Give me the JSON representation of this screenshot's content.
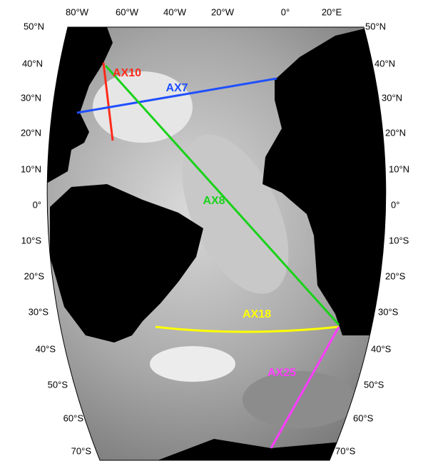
{
  "map": {
    "longitude_labels": [
      "80°W",
      "60°W",
      "40°W",
      "20°W",
      "0°",
      "20°E"
    ],
    "latitude_labels_left": [
      "50°N",
      "40°N",
      "30°N",
      "20°N",
      "10°N",
      "0°",
      "10°S",
      "20°S",
      "30°S",
      "40°S",
      "50°S",
      "60°S",
      "70°S"
    ],
    "latitude_labels_right": [
      "50°N",
      "40°N",
      "30°N",
      "20°N",
      "10°N",
      "0°",
      "10°S",
      "20°S",
      "30°S",
      "40°S",
      "50°S",
      "60°S",
      "70°S"
    ],
    "transects": [
      {
        "name": "AX10",
        "color": "#ff2a1a"
      },
      {
        "name": "AX7",
        "color": "#1f4fff"
      },
      {
        "name": "AX8",
        "color": "#19d219"
      },
      {
        "name": "AX18",
        "color": "#ffff00"
      },
      {
        "name": "AX25",
        "color": "#ff3cff"
      }
    ]
  }
}
